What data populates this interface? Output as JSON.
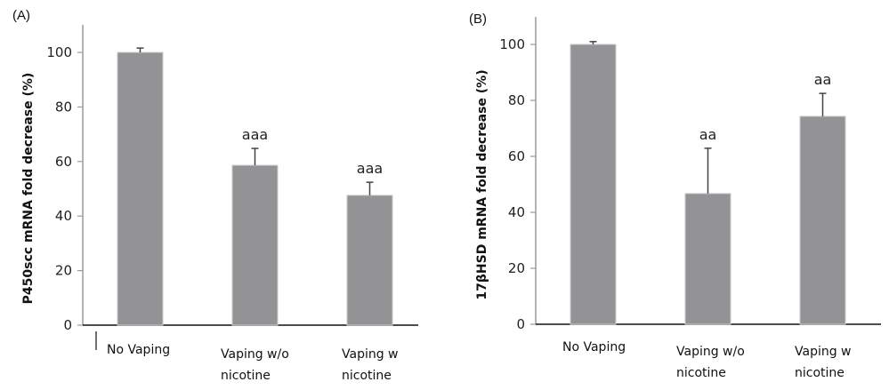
{
  "chart_data": [
    {
      "type": "bar",
      "panel_label": "(A)",
      "title": "",
      "xlabel": "",
      "ylabel": "P450scc mRNA fold decrease (%)",
      "ylim": [
        0,
        110
      ],
      "yticks": [
        0,
        20,
        40,
        60,
        80,
        100
      ],
      "grid": false,
      "categories": [
        [
          "No Vaping"
        ],
        [
          "Vaping w/o",
          "nicotine"
        ],
        [
          "Vaping w",
          "nicotine"
        ]
      ],
      "values": [
        100,
        58.6,
        47.6
      ],
      "error_upper": [
        1.6,
        6.2,
        4.8
      ],
      "annotations": [
        "",
        "aaa",
        "aaa"
      ],
      "bar_color": "#939396"
    },
    {
      "type": "bar",
      "panel_label": "(B)",
      "title": "",
      "xlabel": "",
      "ylabel": "17βHSD mRNA fold decrease (%)",
      "ylim": [
        0,
        110
      ],
      "yticks": [
        0,
        20,
        40,
        60,
        80,
        100
      ],
      "grid": false,
      "categories": [
        [
          "No Vaping"
        ],
        [
          "Vaping w/o",
          "nicotine"
        ],
        [
          "Vaping w",
          "nicotine"
        ]
      ],
      "values": [
        100,
        46.7,
        74.3
      ],
      "error_upper": [
        1.0,
        16.2,
        8.2
      ],
      "annotations": [
        "",
        "aa",
        "aa"
      ],
      "bar_color": "#939396"
    }
  ]
}
